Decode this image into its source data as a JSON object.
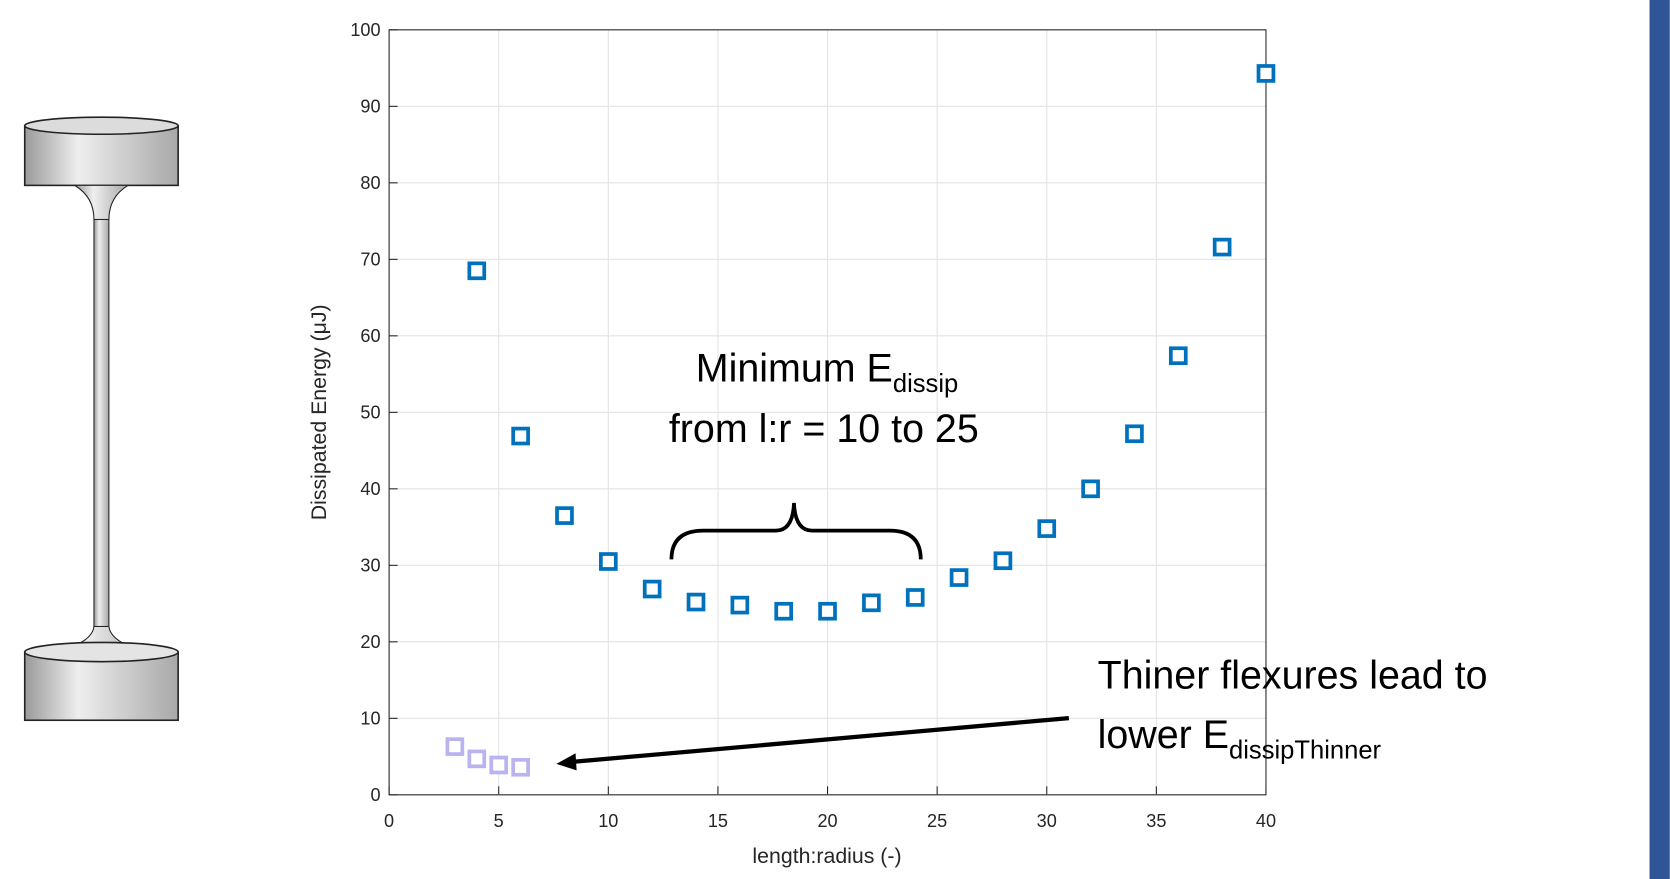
{
  "chart_data": {
    "type": "scatter",
    "x_label": "length:radius (-)",
    "y_label": "Dissipated Energy (μJ)",
    "xlim": [
      0,
      40
    ],
    "xticks": [
      0,
      5,
      10,
      15,
      20,
      25,
      30,
      35,
      40
    ],
    "ylim": [
      0,
      100
    ],
    "yticks": [
      0,
      10,
      20,
      30,
      40,
      50,
      60,
      70,
      80,
      90,
      100
    ],
    "grid": true,
    "series": [
      {
        "color": "#0072bd",
        "x": [
          4,
          6,
          8,
          10,
          12,
          14,
          16,
          18,
          20,
          22,
          24,
          26,
          28,
          30,
          32,
          34,
          36,
          38,
          40
        ],
        "values": [
          68.5,
          46.9,
          36.5,
          30.5,
          26.9,
          25.2,
          24.8,
          24.0,
          24.0,
          25.1,
          25.8,
          28.4,
          30.6,
          34.8,
          40.0,
          47.2,
          57.4,
          71.6,
          94.3
        ]
      },
      {
        "color": "#b9b3f0",
        "x": [
          3,
          4,
          5,
          6
        ],
        "values": [
          6.3,
          4.7,
          3.9,
          3.6
        ]
      }
    ],
    "annotations": [
      {
        "text": "Minimum E",
        "subscript": "dissip",
        "line2": "from l:r = 10 to 25"
      },
      {
        "text": "Thiner flexures lead to",
        "line2": "lower E",
        "subscript": "dissipThinner"
      }
    ]
  }
}
